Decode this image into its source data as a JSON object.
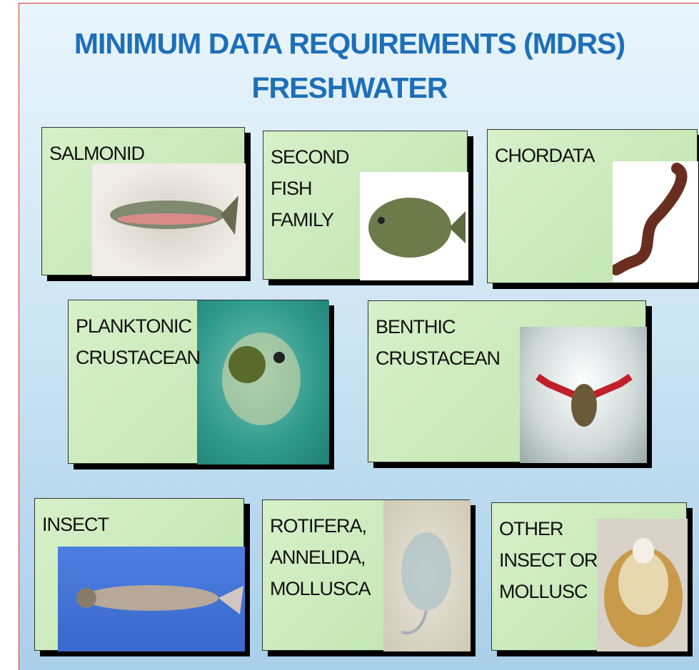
{
  "title": [
    "MINIMUM DATA REQUIREMENTS (MDRS)",
    "FRESHWATER"
  ],
  "cards": [
    {
      "label": [
        "SALMONID"
      ]
    },
    {
      "label": [
        "SECOND",
        "FISH",
        "FAMILY"
      ]
    },
    {
      "label": [
        "CHORDATA"
      ]
    },
    {
      "label": [
        "PLANKTONIC",
        "CRUSTACEAN"
      ]
    },
    {
      "label": [
        "BENTHIC",
        "CRUSTACEAN"
      ]
    },
    {
      "label": [
        "INSECT"
      ]
    },
    {
      "label": [
        "ROTIFERA,",
        "ANNELIDA,",
        "MOLLUSCA"
      ]
    },
    {
      "label": [
        "OTHER",
        "INSECT OR",
        "MOLLUSC"
      ]
    }
  ]
}
